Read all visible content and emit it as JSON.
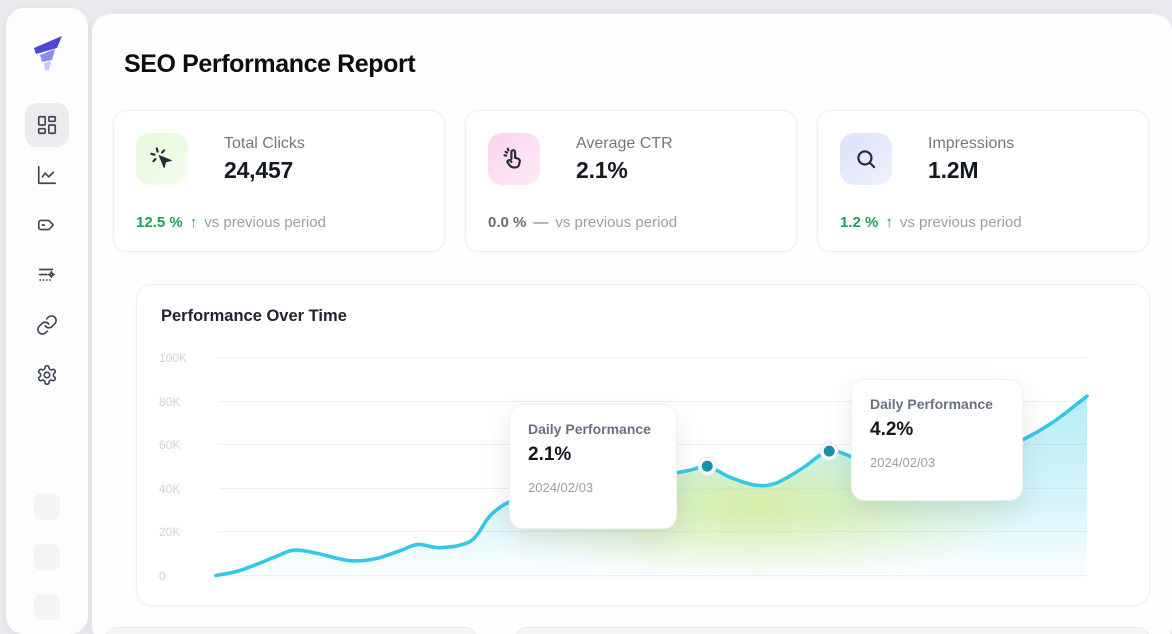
{
  "app": {
    "background": "#e9eaed"
  },
  "sidebar": {
    "logo_icon": "funnel-logo-icon",
    "items": [
      {
        "icon": "layout-dashboard-icon",
        "active": true
      },
      {
        "icon": "chart-line-icon",
        "active": false
      },
      {
        "icon": "tag-icon",
        "active": false
      },
      {
        "icon": "list-filter-sparkle-icon",
        "active": false
      },
      {
        "icon": "link-icon",
        "active": false
      },
      {
        "icon": "settings-gear-icon",
        "active": false
      }
    ]
  },
  "header": {
    "title": "SEO Performance Report"
  },
  "stats": [
    {
      "label": "Total Clicks",
      "value": "24,457",
      "delta": "12.5 %",
      "delta_glyph": "↑",
      "delta_color": "#1ba151",
      "note": "vs previous period",
      "icon": "cursor-click-icon",
      "tile_from": "#e4fadc",
      "tile_to": "#f5feee"
    },
    {
      "label": "Average CTR",
      "value": "2.1%",
      "delta": "0.0 %",
      "delta_glyph": "—",
      "delta_color": "#666c75",
      "note": "vs previous period",
      "icon": "tap-hand-icon",
      "tile_from": "#fad4ee",
      "tile_to": "#fdeaf8"
    },
    {
      "label": "Impressions",
      "value": "1.2M",
      "delta": "1.2 %",
      "delta_glyph": "↑",
      "delta_color": "#1ba151",
      "note": "vs previous period",
      "icon": "search-icon",
      "tile_from": "#dce2f9",
      "tile_to": "#eef1fd"
    }
  ],
  "chart": {
    "title": "Performance Over Time",
    "tooltips": [
      {
        "title": "Daily Performance",
        "value": "2.1%",
        "date": "2024/02/03"
      },
      {
        "title": "Daily Performance",
        "value": "4.2%",
        "date": "2024/02/03"
      }
    ]
  },
  "chart_data": {
    "type": "area",
    "title": "Performance Over Time",
    "xlabel": "",
    "ylabel": "",
    "ylim": [
      0,
      100000
    ],
    "y_ticks": [
      "100K",
      "80K",
      "60K",
      "40K",
      "20K",
      "0"
    ],
    "grid": "horizontal",
    "legend": false,
    "line_color": "#35c7e8",
    "marker_color": "#1791ab",
    "series_name": "Daily Performance",
    "points": [
      [
        0.0,
        0
      ],
      [
        0.023,
        1800
      ],
      [
        0.046,
        5000
      ],
      [
        0.069,
        8800
      ],
      [
        0.09,
        11700
      ],
      [
        0.115,
        10300
      ],
      [
        0.138,
        8000
      ],
      [
        0.158,
        6700
      ],
      [
        0.184,
        7800
      ],
      [
        0.212,
        11500
      ],
      [
        0.232,
        14300
      ],
      [
        0.258,
        12800
      ],
      [
        0.293,
        16000
      ],
      [
        0.316,
        28000
      ],
      [
        0.344,
        35000
      ],
      [
        0.396,
        40000
      ],
      [
        0.453,
        43000
      ],
      [
        0.511,
        46000
      ],
      [
        0.545,
        48500
      ],
      [
        0.564,
        50300
      ],
      [
        0.591,
        45000
      ],
      [
        0.62,
        41500
      ],
      [
        0.643,
        42500
      ],
      [
        0.672,
        49000
      ],
      [
        0.704,
        57200
      ],
      [
        0.735,
        54000
      ],
      [
        0.775,
        51000
      ],
      [
        0.821,
        52000
      ],
      [
        0.873,
        56500
      ],
      [
        0.918,
        61000
      ],
      [
        0.959,
        70000
      ],
      [
        1.0,
        82500
      ]
    ],
    "markers": [
      {
        "x": 0.564,
        "y": 50300,
        "value_label": "2.1%",
        "date": "2024/02/03"
      },
      {
        "x": 0.704,
        "y": 57200,
        "value_label": "4.2%",
        "date": "2024/02/03"
      }
    ]
  }
}
